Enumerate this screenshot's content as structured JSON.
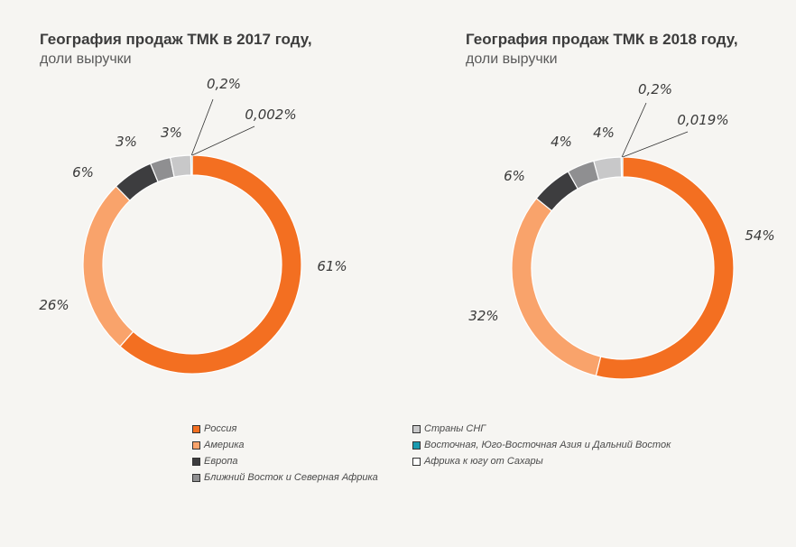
{
  "titles": {
    "left": {
      "main": "География продаж ТМК в 2017 году,",
      "sub": "доли выручки"
    },
    "right": {
      "main": "География продаж ТМК в 2018 году,",
      "sub": "доли выручки"
    }
  },
  "colors": {
    "Россия": "#f36f21",
    "Америка": "#f9a36b",
    "Европа": "#3d3d3f",
    "Ближний Восток и Северная Африка": "#8f8f91",
    "Страны СНГ": "#c8c8c9",
    "Восточная, Юго-Восточная Азия и Дальний Восток": "#1a9ab0",
    "Африка к югу от Сахары": "#ffffff"
  },
  "legend": {
    "left": [
      "Россия",
      "Америка",
      "Европа",
      "Ближний Восток и Северная Африка"
    ],
    "right": [
      "Страны СНГ",
      "Восточная, Юго-Восточная Азия и Дальний Восток",
      "Африка к югу от Сахары"
    ]
  },
  "chart_data": [
    {
      "type": "pie",
      "title": "География продаж ТМК в 2017 году,",
      "subtitle": "доли выручки",
      "categories": [
        "Россия",
        "Америка",
        "Европа",
        "Ближний Восток и Северная Африка",
        "Страны СНГ",
        "Восточная, Юго-Восточная Азия и Дальний Восток",
        "Африка к югу от Сахары"
      ],
      "values": [
        61,
        26,
        6,
        3,
        3,
        0.2,
        0.002
      ],
      "labels": [
        "61%",
        "26%",
        "6%",
        "3%",
        "3%",
        "0,2%",
        "0,002%"
      ]
    },
    {
      "type": "pie",
      "title": "География продаж ТМК в 2018 году,",
      "subtitle": "доли выручки",
      "categories": [
        "Россия",
        "Америка",
        "Европа",
        "Ближний Восток и Северная Африка",
        "Страны СНГ",
        "Восточная, Юго-Восточная Азия и Дальний Восток",
        "Африка к югу от Сахары"
      ],
      "values": [
        54,
        32,
        6,
        4,
        4,
        0.2,
        0.019
      ],
      "labels": [
        "54%",
        "32%",
        "6%",
        "4%",
        "4%",
        "0,2%",
        "0,019%"
      ]
    }
  ]
}
